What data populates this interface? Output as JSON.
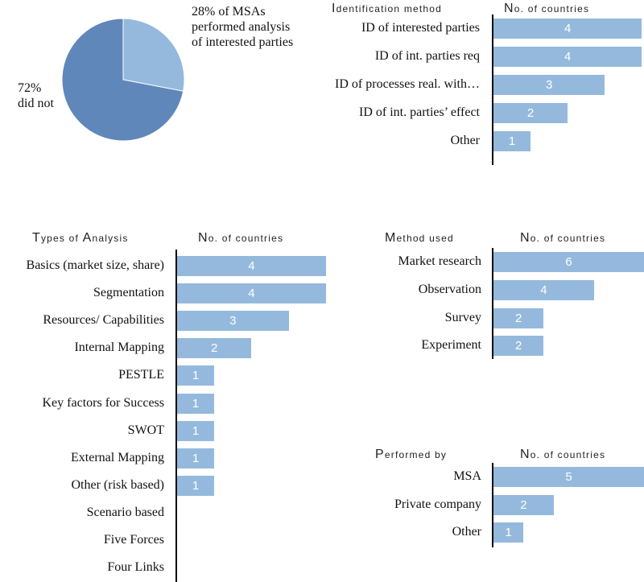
{
  "chart_data": [
    {
      "type": "pie",
      "slices": [
        {
          "label": "28% of MSAs performed analysis of interested parties",
          "value": 28,
          "color": "#94b9dd"
        },
        {
          "label": "72% did not",
          "value": 72,
          "color": "#5f87ba"
        }
      ],
      "annotations": {
        "performed": [
          "28% of MSAs",
          "performed analysis",
          "of interested parties"
        ],
        "not_performed": [
          "72%",
          "did not"
        ]
      }
    },
    {
      "type": "bar",
      "category_header": "Identification method",
      "category_header_initial": "I",
      "category_header_rest": "dentification method",
      "value_header": "No. of countries",
      "value_header_initial": "N",
      "value_header_rest": "o. of countries",
      "categories": [
        "ID of interested parties",
        "ID of int. parties req",
        "ID of processes real. with…",
        "ID of int. parties’ effect",
        "Other"
      ],
      "values": [
        4,
        4,
        3,
        2,
        1
      ],
      "xlim": [
        0,
        4
      ]
    },
    {
      "type": "bar",
      "category_header": "Types of Analysis",
      "category_header_initial": "T",
      "category_header_rest": "ypes of ",
      "category_header_initial2": "A",
      "category_header_rest2": "nalysis",
      "value_header": "No. of countries",
      "value_header_initial": "N",
      "value_header_rest": "o. of countries",
      "categories": [
        "Basics (market size, share)",
        "Segmentation",
        "Resources/ Capabilities",
        "Internal Mapping",
        "PESTLE",
        "Key factors for Success",
        "SWOT",
        "External Mapping",
        "Other (risk based)",
        "Scenario based",
        "Five Forces",
        "Four Links"
      ],
      "values": [
        4,
        4,
        3,
        2,
        1,
        1,
        1,
        1,
        1,
        null,
        null,
        null
      ],
      "xlim": [
        0,
        4
      ]
    },
    {
      "type": "bar",
      "category_header": "Method used",
      "category_header_initial": "M",
      "category_header_rest": "ethod used",
      "value_header": "No. of countries",
      "value_header_initial": "N",
      "value_header_rest": "o. of countries",
      "categories": [
        "Market research",
        "Observation",
        "Survey",
        "Experiment"
      ],
      "values": [
        6,
        4,
        2,
        2
      ],
      "xlim": [
        0,
        6
      ]
    },
    {
      "type": "bar",
      "category_header": "Performed by",
      "category_header_initial": "P",
      "category_header_rest": "erformed by",
      "value_header": "No. of countries",
      "value_header_initial": "N",
      "value_header_rest": "o. of countries",
      "categories": [
        "MSA",
        "Private company",
        "Other"
      ],
      "values": [
        5,
        2,
        1
      ],
      "xlim": [
        0,
        5
      ]
    }
  ]
}
